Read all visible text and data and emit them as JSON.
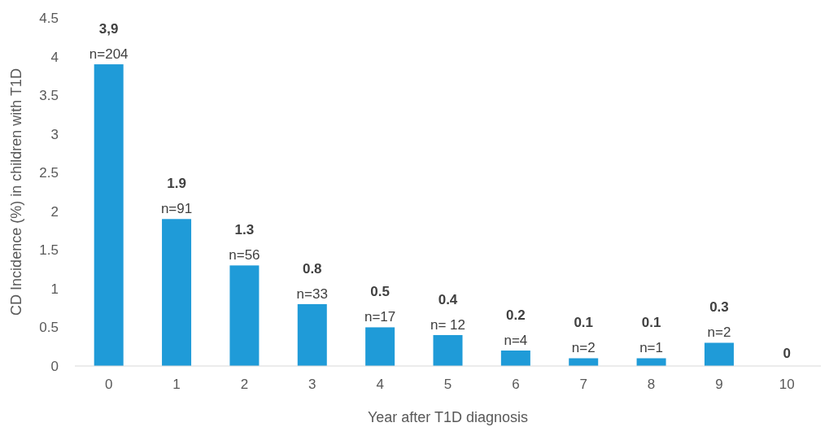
{
  "chart_data": {
    "type": "bar",
    "xlabel": "Year after T1D diagnosis",
    "ylabel": "CD Incidence (%) in children with T1D",
    "categories": [
      "0",
      "1",
      "2",
      "3",
      "4",
      "5",
      "6",
      "7",
      "8",
      "9",
      "10"
    ],
    "values": [
      3.9,
      1.9,
      1.3,
      0.8,
      0.5,
      0.4,
      0.2,
      0.1,
      0.1,
      0.3,
      0
    ],
    "value_labels": [
      "3,9",
      "1.9",
      "1.3",
      "0.8",
      "0.5",
      "0.4",
      "0.2",
      "0.1",
      "0.1",
      "0.3",
      "0"
    ],
    "color": "#1f9bd8",
    "ylim": [
      0,
      4.5
    ],
    "yticks": [
      0,
      0.5,
      1,
      1.5,
      2,
      2.5,
      3,
      3.5,
      4,
      4.5
    ],
    "grid": false,
    "annotations": [
      {
        "text": "n=204",
        "x": "0",
        "y": 3.9
      },
      {
        "text": "n=91",
        "x": "1",
        "y": 1.9
      },
      {
        "text": "n=56",
        "x": "2",
        "y": 1.3
      },
      {
        "text": "n=33",
        "x": "3",
        "y": 0.8
      },
      {
        "text": "n=17",
        "x": "4",
        "y": 0.5
      },
      {
        "text": "n= 12",
        "x": "5",
        "y": 0.4
      },
      {
        "text": "n=4",
        "x": "6",
        "y": 0.2
      },
      {
        "text": "n=2",
        "x": "7",
        "y": 0.1
      },
      {
        "text": "n=1",
        "x": "8",
        "y": 0.1
      },
      {
        "text": "n=2",
        "x": "9",
        "y": 0.3
      }
    ]
  }
}
